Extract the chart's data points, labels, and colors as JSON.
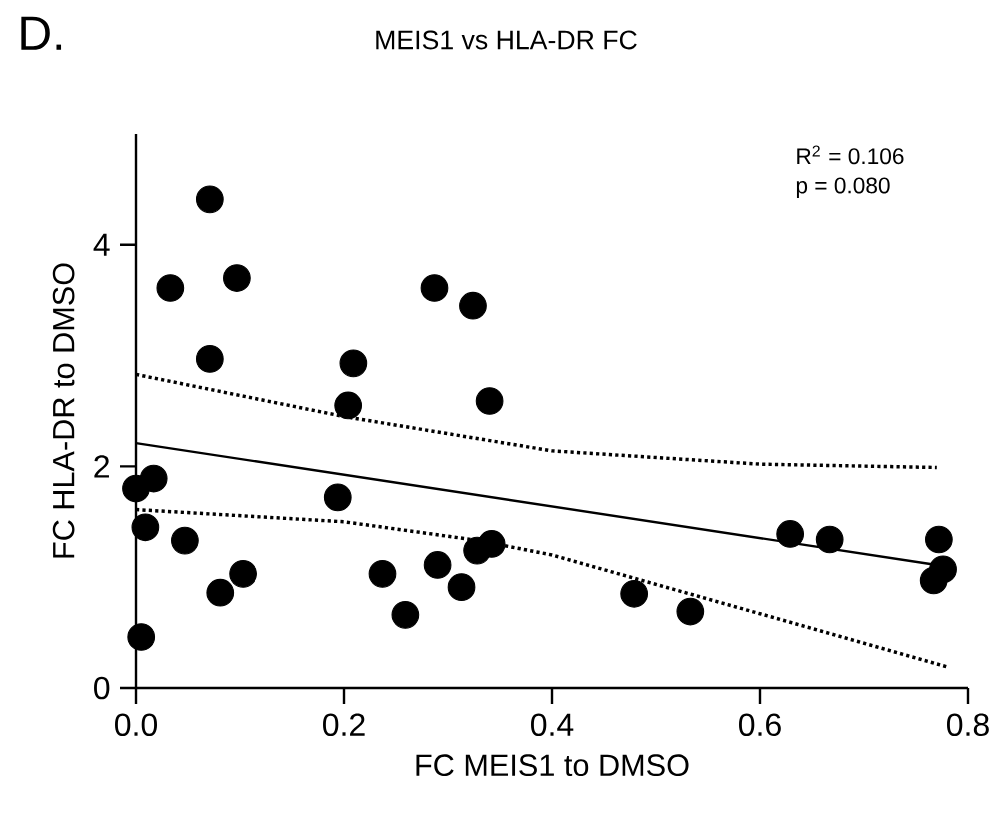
{
  "chart_data": {
    "type": "scatter",
    "title": "MEIS1 vs HLA-DR FC",
    "xlabel": "FC MEIS1 to DMSO",
    "ylabel": "FC HLA-DR to DMSO",
    "annotations": [
      "D.",
      "R$^{2}$ = 0.106",
      "p = 0.080"
    ],
    "grid": false,
    "xlim": [
      0,
      0.8
    ],
    "ylim": [
      0,
      5
    ],
    "xticks": [
      {
        "value": 0,
        "label": "0.0"
      },
      0.2,
      0.4,
      0.6,
      0.8
    ],
    "yticks": [
      0,
      2,
      4
    ],
    "series": [
      {
        "marker": "circle",
        "color": "#000000",
        "x": [
          0.071,
          0.033,
          0.097,
          0.071,
          0.209,
          0.204,
          0.287,
          0.324,
          0.34,
          0.0,
          0.017,
          0.009,
          0.047,
          0.005,
          0.081,
          0.103,
          0.194,
          0.237,
          0.259,
          0.29,
          0.313,
          0.328,
          0.342,
          0.479,
          0.533,
          0.629,
          0.667,
          0.772,
          0.776,
          0.767
        ],
        "values": [
          4.41,
          3.61,
          3.7,
          2.97,
          2.93,
          2.55,
          3.61,
          3.45,
          2.59,
          1.8,
          1.89,
          1.45,
          1.33,
          0.46,
          0.86,
          1.03,
          1.72,
          1.03,
          0.66,
          1.11,
          0.91,
          1.24,
          1.3,
          0.85,
          0.69,
          1.39,
          1.34,
          1.34,
          1.07,
          0.97
        ]
      },
      {
        "type": "line",
        "color": "#000000",
        "line_style": "solid",
        "marker": "none",
        "x": [
          0,
          0.77
        ],
        "values": [
          2.21,
          1.11
        ]
      },
      {
        "type": "line",
        "color": "#000000",
        "line_style": "dotted",
        "marker": "none",
        "x": [
          0,
          0.2,
          0.4,
          0.6,
          0.77
        ],
        "values": [
          2.83,
          2.45,
          2.14,
          2.02,
          1.99
        ]
      },
      {
        "type": "line",
        "color": "#000000",
        "line_style": "dotted",
        "marker": "none",
        "x": [
          0,
          0.2,
          0.33,
          0.4,
          0.6,
          0.78
        ],
        "values": [
          1.61,
          1.5,
          1.33,
          1.2,
          0.67,
          0.19
        ]
      }
    ]
  }
}
